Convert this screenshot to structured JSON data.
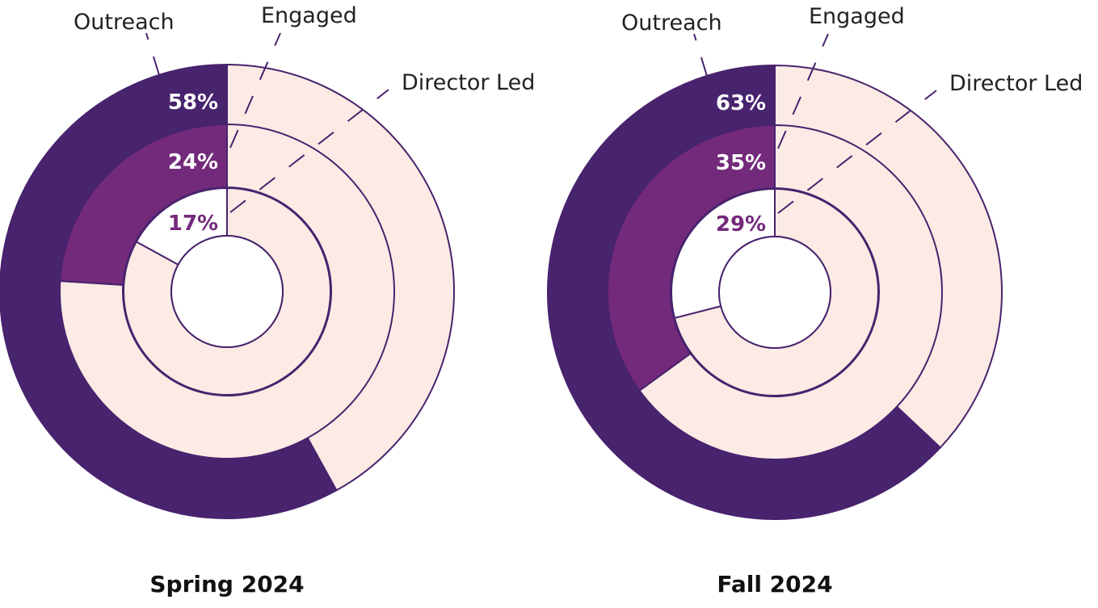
{
  "colors": {
    "outreach": "#48236e",
    "engaged": "#742a7b",
    "director_led": "#ffffff",
    "remainder": "#fbebe4",
    "outline": "#48236e",
    "pct_light": "#ffffff",
    "pct_dark": "#742a7b"
  },
  "chart_data": [
    {
      "type": "pie",
      "subtype": "concentric-rings",
      "title": "Spring 2024",
      "rings": [
        {
          "name": "Outreach",
          "value": 58,
          "label": "58%"
        },
        {
          "name": "Engaged",
          "value": 24,
          "label": "24%"
        },
        {
          "name": "Director Led",
          "value": 17,
          "label": "17%"
        }
      ]
    },
    {
      "type": "pie",
      "subtype": "concentric-rings",
      "title": "Fall 2024",
      "rings": [
        {
          "name": "Outreach",
          "value": 63,
          "label": "63%"
        },
        {
          "name": "Engaged",
          "value": 35,
          "label": "35%"
        },
        {
          "name": "Director Led",
          "value": 29,
          "label": "29%"
        }
      ]
    }
  ]
}
